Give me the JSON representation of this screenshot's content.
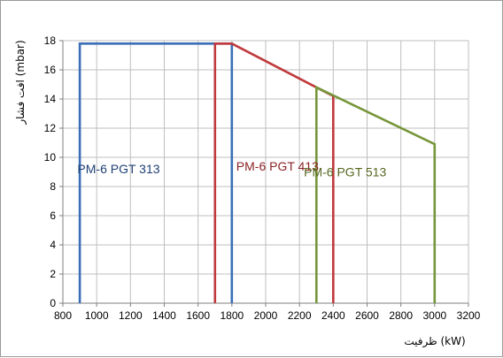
{
  "chart_data": {
    "type": "line",
    "xlabel": "ظرفیت (kW)",
    "ylabel": "افت فشار (mbar)",
    "xlim": [
      800,
      3200
    ],
    "ylim": [
      0,
      18
    ],
    "x_ticks": [
      "800",
      "1000",
      "1200",
      "1400",
      "1600",
      "1800",
      "2000",
      "2200",
      "2400",
      "2600",
      "2800",
      "3000",
      "3200"
    ],
    "y_ticks": [
      "0",
      "2",
      "4",
      "6",
      "8",
      "10",
      "12",
      "14",
      "16",
      "18"
    ],
    "grid": true,
    "series": [
      {
        "name": "PM-6 PGT 313",
        "color": "#3a6fb7",
        "x": [
          900,
          900,
          1800,
          1800
        ],
        "y": [
          0,
          17.8,
          17.8,
          0
        ]
      },
      {
        "name": "PM-6 PGT 413",
        "color": "#c0393c",
        "x": [
          1700,
          1700,
          1800,
          2400,
          2400
        ],
        "y": [
          0,
          17.8,
          17.8,
          14.2,
          0
        ]
      },
      {
        "name": "PM-6 PGT 513",
        "color": "#76963a",
        "x": [
          2300,
          2300,
          3000,
          3000
        ],
        "y": [
          0,
          14.8,
          10.9,
          0
        ]
      }
    ],
    "labels": [
      {
        "text": "PM-6 PGT 313",
        "x": 1130,
        "y": 8.9,
        "color": "#1f3f73"
      },
      {
        "text": "PM-6 PGT 413",
        "x": 2070,
        "y": 9.1,
        "color": "#8b2326"
      },
      {
        "text": "PM-6 PGT 513",
        "x": 2470,
        "y": 8.7,
        "color": "#55671f"
      }
    ]
  }
}
